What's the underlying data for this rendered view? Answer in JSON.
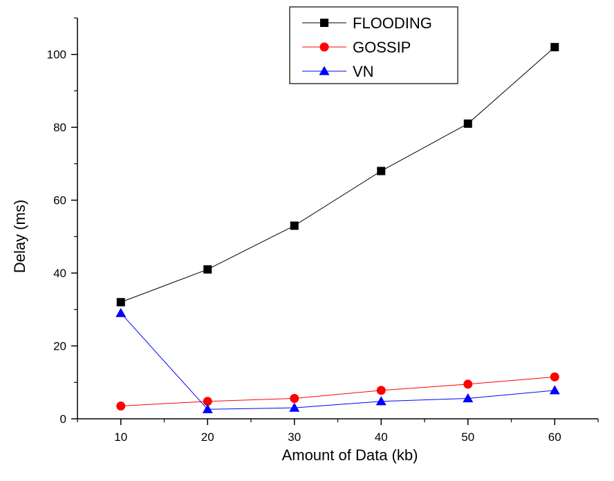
{
  "chart_data": {
    "type": "line",
    "xlabel": "Amount of Data (kb)",
    "ylabel": "Delay (ms)",
    "x": [
      10,
      20,
      30,
      40,
      50,
      60
    ],
    "xlim": [
      5,
      65
    ],
    "ylim": [
      0,
      110
    ],
    "xticks": [
      10,
      20,
      30,
      40,
      50,
      60
    ],
    "yticks": [
      0,
      20,
      40,
      60,
      80,
      100
    ],
    "grid": false,
    "legend_position": "top-center",
    "series": [
      {
        "name": "FLOODING",
        "values": [
          32,
          41,
          53,
          68,
          81,
          102
        ],
        "color": "#000000",
        "marker": "square"
      },
      {
        "name": "GOSSIP",
        "values": [
          3.5,
          4.8,
          5.6,
          7.8,
          9.5,
          11.5
        ],
        "color": "#ff0000",
        "marker": "circle"
      },
      {
        "name": "VN",
        "values": [
          29,
          2.6,
          3.0,
          4.8,
          5.6,
          7.8
        ],
        "color": "#0000ff",
        "marker": "triangle"
      }
    ]
  }
}
